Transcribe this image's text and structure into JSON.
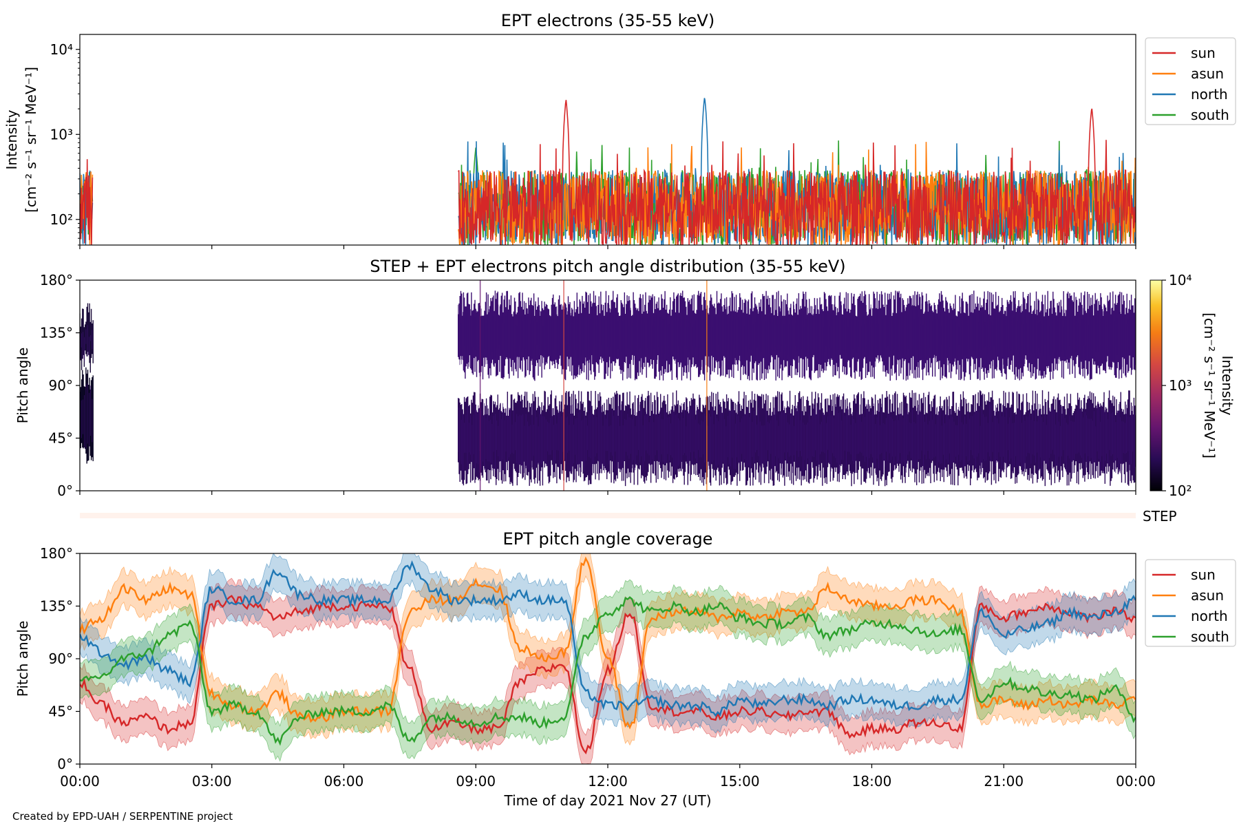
{
  "figure": {
    "credit": "Created by EPD-UAH / SERPENTINE project",
    "xlabel": "Time of day 2021 Nov 27 (UT)",
    "xticks": [
      "00:00",
      "03:00",
      "06:00",
      "09:00",
      "12:00",
      "15:00",
      "18:00",
      "21:00",
      "00:00"
    ],
    "xlim_hours": [
      0,
      24
    ],
    "series_colors": {
      "sun": "#d62728",
      "asun": "#ff7f0e",
      "north": "#1f77b4",
      "south": "#2ca02c"
    }
  },
  "chart_data": [
    {
      "id": "intensity",
      "type": "line",
      "title": "EPT electrons (35-55 keV)",
      "ylabel_line1": "Intensity",
      "ylabel_line2": "[cm⁻² s⁻¹ sr⁻¹ MeV⁻¹]",
      "yscale": "log",
      "ylim": [
        50,
        15000
      ],
      "yticks": [
        {
          "value": 100,
          "label": "10²"
        },
        {
          "value": 1000,
          "label": "10³"
        },
        {
          "value": 10000,
          "label": "10⁴"
        }
      ],
      "legend": {
        "placement": "outside-right",
        "entries": [
          "sun",
          "asun",
          "north",
          "south"
        ]
      },
      "data_gaps_hours": [
        [
          0.3,
          8.6
        ]
      ],
      "baseline_level": 150,
      "peaks": [
        {
          "series": "sun",
          "x_hours": 11.05,
          "y": 2600
        },
        {
          "series": "north",
          "x_hours": 14.2,
          "y": 2800
        },
        {
          "series": "sun",
          "x_hours": 23.0,
          "y": 2100
        },
        {
          "series": "south",
          "x_hours": 9.0,
          "y": 700
        },
        {
          "series": "asun",
          "x_hours": 0.15,
          "y": 380
        }
      ]
    },
    {
      "id": "pad",
      "type": "heatmap",
      "title": "STEP + EPT electrons pitch angle distribution (35-55 keV)",
      "ylabel": "Pitch angle",
      "ylim": [
        0,
        180
      ],
      "yticks": [
        {
          "value": 0,
          "label": "0°"
        },
        {
          "value": 45,
          "label": "45°"
        },
        {
          "value": 90,
          "label": "90°"
        },
        {
          "value": 135,
          "label": "135°"
        },
        {
          "value": 180,
          "label": "180°"
        }
      ],
      "colorbar": {
        "label_line1": "Intensity",
        "label_line2": "[cm⁻² s⁻¹ sr⁻¹ MeV⁻¹]",
        "scale": "log",
        "range": [
          100,
          10000
        ],
        "ticks": [
          {
            "value": 100,
            "label": "10²"
          },
          {
            "value": 1000,
            "label": "10³"
          },
          {
            "value": 10000,
            "label": "10⁴"
          }
        ],
        "colormap": "inferno"
      },
      "bands": [
        {
          "x_hours": [
            0.0,
            0.3
          ],
          "y": [
            30,
            95
          ]
        },
        {
          "x_hours": [
            0.0,
            0.3
          ],
          "y": [
            110,
            150
          ]
        },
        {
          "x_hours": [
            8.6,
            24.0
          ],
          "y": [
            15,
            75
          ]
        },
        {
          "x_hours": [
            8.6,
            24.0
          ],
          "y": [
            105,
            160
          ]
        }
      ]
    },
    {
      "id": "step",
      "type": "heatmap",
      "label": "STEP"
    },
    {
      "id": "coverage",
      "type": "area",
      "title": "EPT pitch angle coverage",
      "ylabel": "Pitch angle",
      "ylim": [
        0,
        180
      ],
      "yticks": [
        {
          "value": 0,
          "label": "0°"
        },
        {
          "value": 45,
          "label": "45°"
        },
        {
          "value": 90,
          "label": "90°"
        },
        {
          "value": 135,
          "label": "135°"
        },
        {
          "value": 180,
          "label": "180°"
        }
      ],
      "legend": {
        "placement": "outside-right",
        "entries": [
          "sun",
          "asun",
          "north",
          "south"
        ]
      },
      "x_hours": [
        0,
        0.5,
        1,
        1.5,
        2,
        2.5,
        3,
        3.5,
        4,
        4.5,
        5,
        5.5,
        6,
        6.5,
        7,
        7.5,
        8,
        8.5,
        9,
        9.5,
        10,
        10.5,
        11,
        11.5,
        12,
        12.5,
        13,
        13.5,
        14,
        14.5,
        15,
        15.5,
        16,
        16.5,
        17,
        17.5,
        18,
        18.5,
        19,
        19.5,
        20,
        20.5,
        21,
        21.5,
        22,
        22.5,
        23,
        23.5,
        24
      ],
      "band_halfwidth_deg": 15,
      "series": [
        {
          "name": "sun",
          "values": [
            70,
            50,
            35,
            40,
            30,
            35,
            135,
            140,
            135,
            125,
            130,
            135,
            135,
            135,
            135,
            80,
            30,
            35,
            30,
            30,
            70,
            80,
            85,
            10,
            80,
            130,
            50,
            45,
            45,
            40,
            45,
            45,
            40,
            45,
            45,
            25,
            30,
            30,
            35,
            35,
            30,
            135,
            125,
            130,
            135,
            130,
            125,
            130,
            125
          ]
        },
        {
          "name": "asun",
          "values": [
            115,
            125,
            150,
            140,
            150,
            145,
            60,
            50,
            45,
            60,
            40,
            40,
            45,
            45,
            45,
            130,
            140,
            140,
            155,
            150,
            100,
            90,
            95,
            175,
            90,
            30,
            125,
            130,
            130,
            125,
            130,
            125,
            130,
            130,
            150,
            140,
            135,
            135,
            140,
            140,
            130,
            50,
            55,
            50,
            55,
            50,
            55,
            50,
            55
          ]
        },
        {
          "name": "north",
          "values": [
            110,
            95,
            85,
            90,
            80,
            70,
            150,
            140,
            140,
            165,
            145,
            140,
            140,
            140,
            140,
            170,
            150,
            140,
            140,
            140,
            145,
            140,
            140,
            60,
            50,
            50,
            55,
            50,
            50,
            45,
            55,
            50,
            55,
            55,
            50,
            55,
            55,
            50,
            50,
            55,
            55,
            130,
            110,
            115,
            120,
            130,
            125,
            130,
            140
          ]
        },
        {
          "name": "south",
          "values": [
            70,
            75,
            90,
            95,
            110,
            120,
            45,
            50,
            45,
            20,
            40,
            45,
            45,
            45,
            50,
            20,
            40,
            40,
            35,
            40,
            40,
            35,
            40,
            110,
            130,
            140,
            130,
            135,
            130,
            135,
            125,
            120,
            120,
            125,
            110,
            115,
            120,
            120,
            115,
            110,
            115,
            55,
            70,
            65,
            60,
            60,
            55,
            65,
            40
          ]
        }
      ]
    }
  ]
}
